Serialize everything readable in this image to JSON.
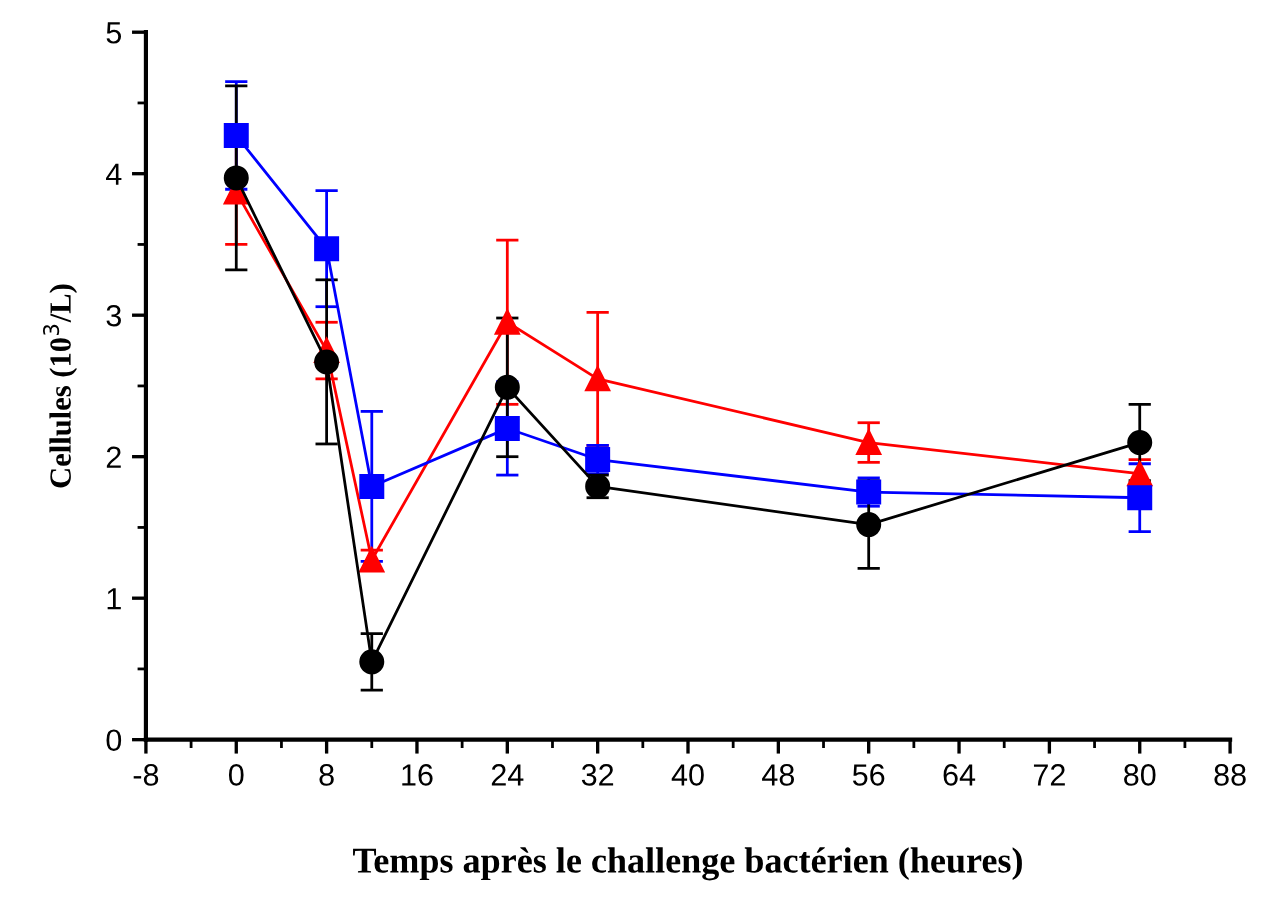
{
  "chart_data": {
    "type": "line",
    "xlabel": "Temps après le challenge bactérien (heures)",
    "ylabel": "Cellules (10$^{3}$/L)",
    "xlim": [
      -8,
      88
    ],
    "xticks": [
      -8,
      0,
      8,
      16,
      24,
      32,
      40,
      48,
      56,
      64,
      72,
      80,
      88
    ],
    "ylim": [
      0,
      5
    ],
    "yticks": [
      0,
      1,
      2,
      3,
      4,
      5
    ],
    "grid": false,
    "legend": false,
    "line_style": "solid",
    "series": [
      {
        "color": "#ff0000",
        "marker": "triangle",
        "x": [
          0,
          8,
          12,
          24,
          32,
          56,
          80
        ],
        "values": [
          3.87,
          2.75,
          1.27,
          2.95,
          2.55,
          2.1,
          1.88
        ],
        "errors": [
          0.37,
          0.2,
          0.07,
          0.58,
          0.47,
          0.14,
          0.1
        ]
      },
      {
        "color": "#0000ff",
        "marker": "square",
        "x": [
          0,
          8,
          12,
          24,
          32,
          56,
          80
        ],
        "values": [
          4.27,
          3.47,
          1.79,
          2.2,
          1.98,
          1.75,
          1.71
        ],
        "errors": [
          0.38,
          0.41,
          0.53,
          0.33,
          0.1,
          0.1,
          0.24
        ]
      },
      {
        "color": "#000000",
        "marker": "circle",
        "x": [
          0,
          8,
          12,
          24,
          32,
          56,
          80
        ],
        "values": [
          3.97,
          2.67,
          0.55,
          2.49,
          1.79,
          1.52,
          2.1
        ],
        "errors": [
          0.65,
          0.58,
          0.2,
          0.49,
          0.08,
          0.31,
          0.27
        ]
      }
    ]
  }
}
